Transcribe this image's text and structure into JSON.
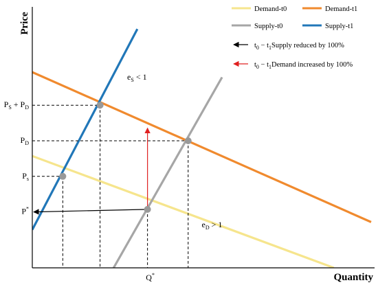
{
  "chart_data": {
    "type": "line",
    "title": "",
    "xlabel": "Quantity",
    "ylabel": "Price",
    "xlim": [
      0,
      10
    ],
    "ylim": [
      0,
      10
    ],
    "grid": false,
    "legend_position": "top-right",
    "series": [
      {
        "name": "Demand-t0",
        "color": "#f6e58d",
        "points": [
          [
            0,
            4.4
          ],
          [
            8.9,
            0
          ]
        ]
      },
      {
        "name": "Demand-t1",
        "color": "#f08a2e",
        "points": [
          [
            0,
            7.7
          ],
          [
            10,
            1.8
          ]
        ]
      },
      {
        "name": "Supply-t0",
        "color": "#a6a6a6",
        "points": [
          [
            2.4,
            0
          ],
          [
            5.6,
            7.5
          ]
        ]
      },
      {
        "name": "Supply-t1",
        "color": "#2177b8",
        "points": [
          [
            0,
            1.5
          ],
          [
            3.1,
            9.4
          ]
        ]
      }
    ],
    "points": [
      {
        "x": 0.9,
        "y": 3.6,
        "color": "#999999"
      },
      {
        "x": 2.0,
        "y": 6.4,
        "color": "#999999"
      },
      {
        "x": 4.6,
        "y": 5.0,
        "color": "#999999"
      },
      {
        "x": 3.4,
        "y": 2.3,
        "color": "#999999"
      }
    ],
    "dashed_lines": [
      {
        "points": [
          [
            0,
            6.4
          ],
          [
            2.0,
            6.4
          ]
        ]
      },
      {
        "points": [
          [
            2.0,
            6.4
          ],
          [
            2.0,
            0
          ]
        ]
      },
      {
        "points": [
          [
            0,
            5.0
          ],
          [
            4.6,
            5.0
          ]
        ]
      },
      {
        "points": [
          [
            4.6,
            5.0
          ],
          [
            4.6,
            0
          ]
        ]
      },
      {
        "points": [
          [
            0,
            3.6
          ],
          [
            0.9,
            3.6
          ]
        ]
      },
      {
        "points": [
          [
            0.9,
            3.6
          ],
          [
            0.9,
            0
          ]
        ]
      },
      {
        "points": [
          [
            3.4,
            2.3
          ],
          [
            3.4,
            0
          ]
        ]
      }
    ],
    "arrows": [
      {
        "from": [
          3.4,
          2.3
        ],
        "to": [
          0,
          2.2
        ],
        "color": "#000000"
      },
      {
        "from": [
          3.4,
          2.3
        ],
        "to": [
          3.4,
          5.5
        ],
        "color": "#e02020"
      }
    ],
    "y_tick_labels": [
      {
        "y": 6.4,
        "main": "P",
        "sub": "S",
        "main2": " + P",
        "sub2": "D"
      },
      {
        "y": 5.0,
        "main": "P",
        "sub": "D",
        "main2": "",
        "sub2": ""
      },
      {
        "y": 3.6,
        "main": "P",
        "sub": "s",
        "main2": "",
        "sub2": ""
      },
      {
        "y": 2.2,
        "main": "P",
        "sup": "*",
        "main2": "",
        "sub2": ""
      }
    ],
    "x_tick_labels": [
      {
        "x": 3.4,
        "main": "Q",
        "sup": "*"
      }
    ],
    "annotations": [
      {
        "x": 2.8,
        "y": 7.4,
        "main": "e",
        "sub": "S",
        "rest": " < 1"
      },
      {
        "x": 5.0,
        "y": 1.6,
        "main": "e",
        "sub": "D",
        "rest": " > 1"
      }
    ],
    "legend_notes": [
      {
        "color": "#000000",
        "main": "t",
        "sub": "0",
        "mid": " − t",
        "sub2": "1",
        "rest": "Supply reduced by 100%"
      },
      {
        "color": "#e02020",
        "main": "t",
        "sub": "0",
        "mid": " − t",
        "sub2": "1",
        "rest": "Demand increased by 100%"
      }
    ]
  }
}
